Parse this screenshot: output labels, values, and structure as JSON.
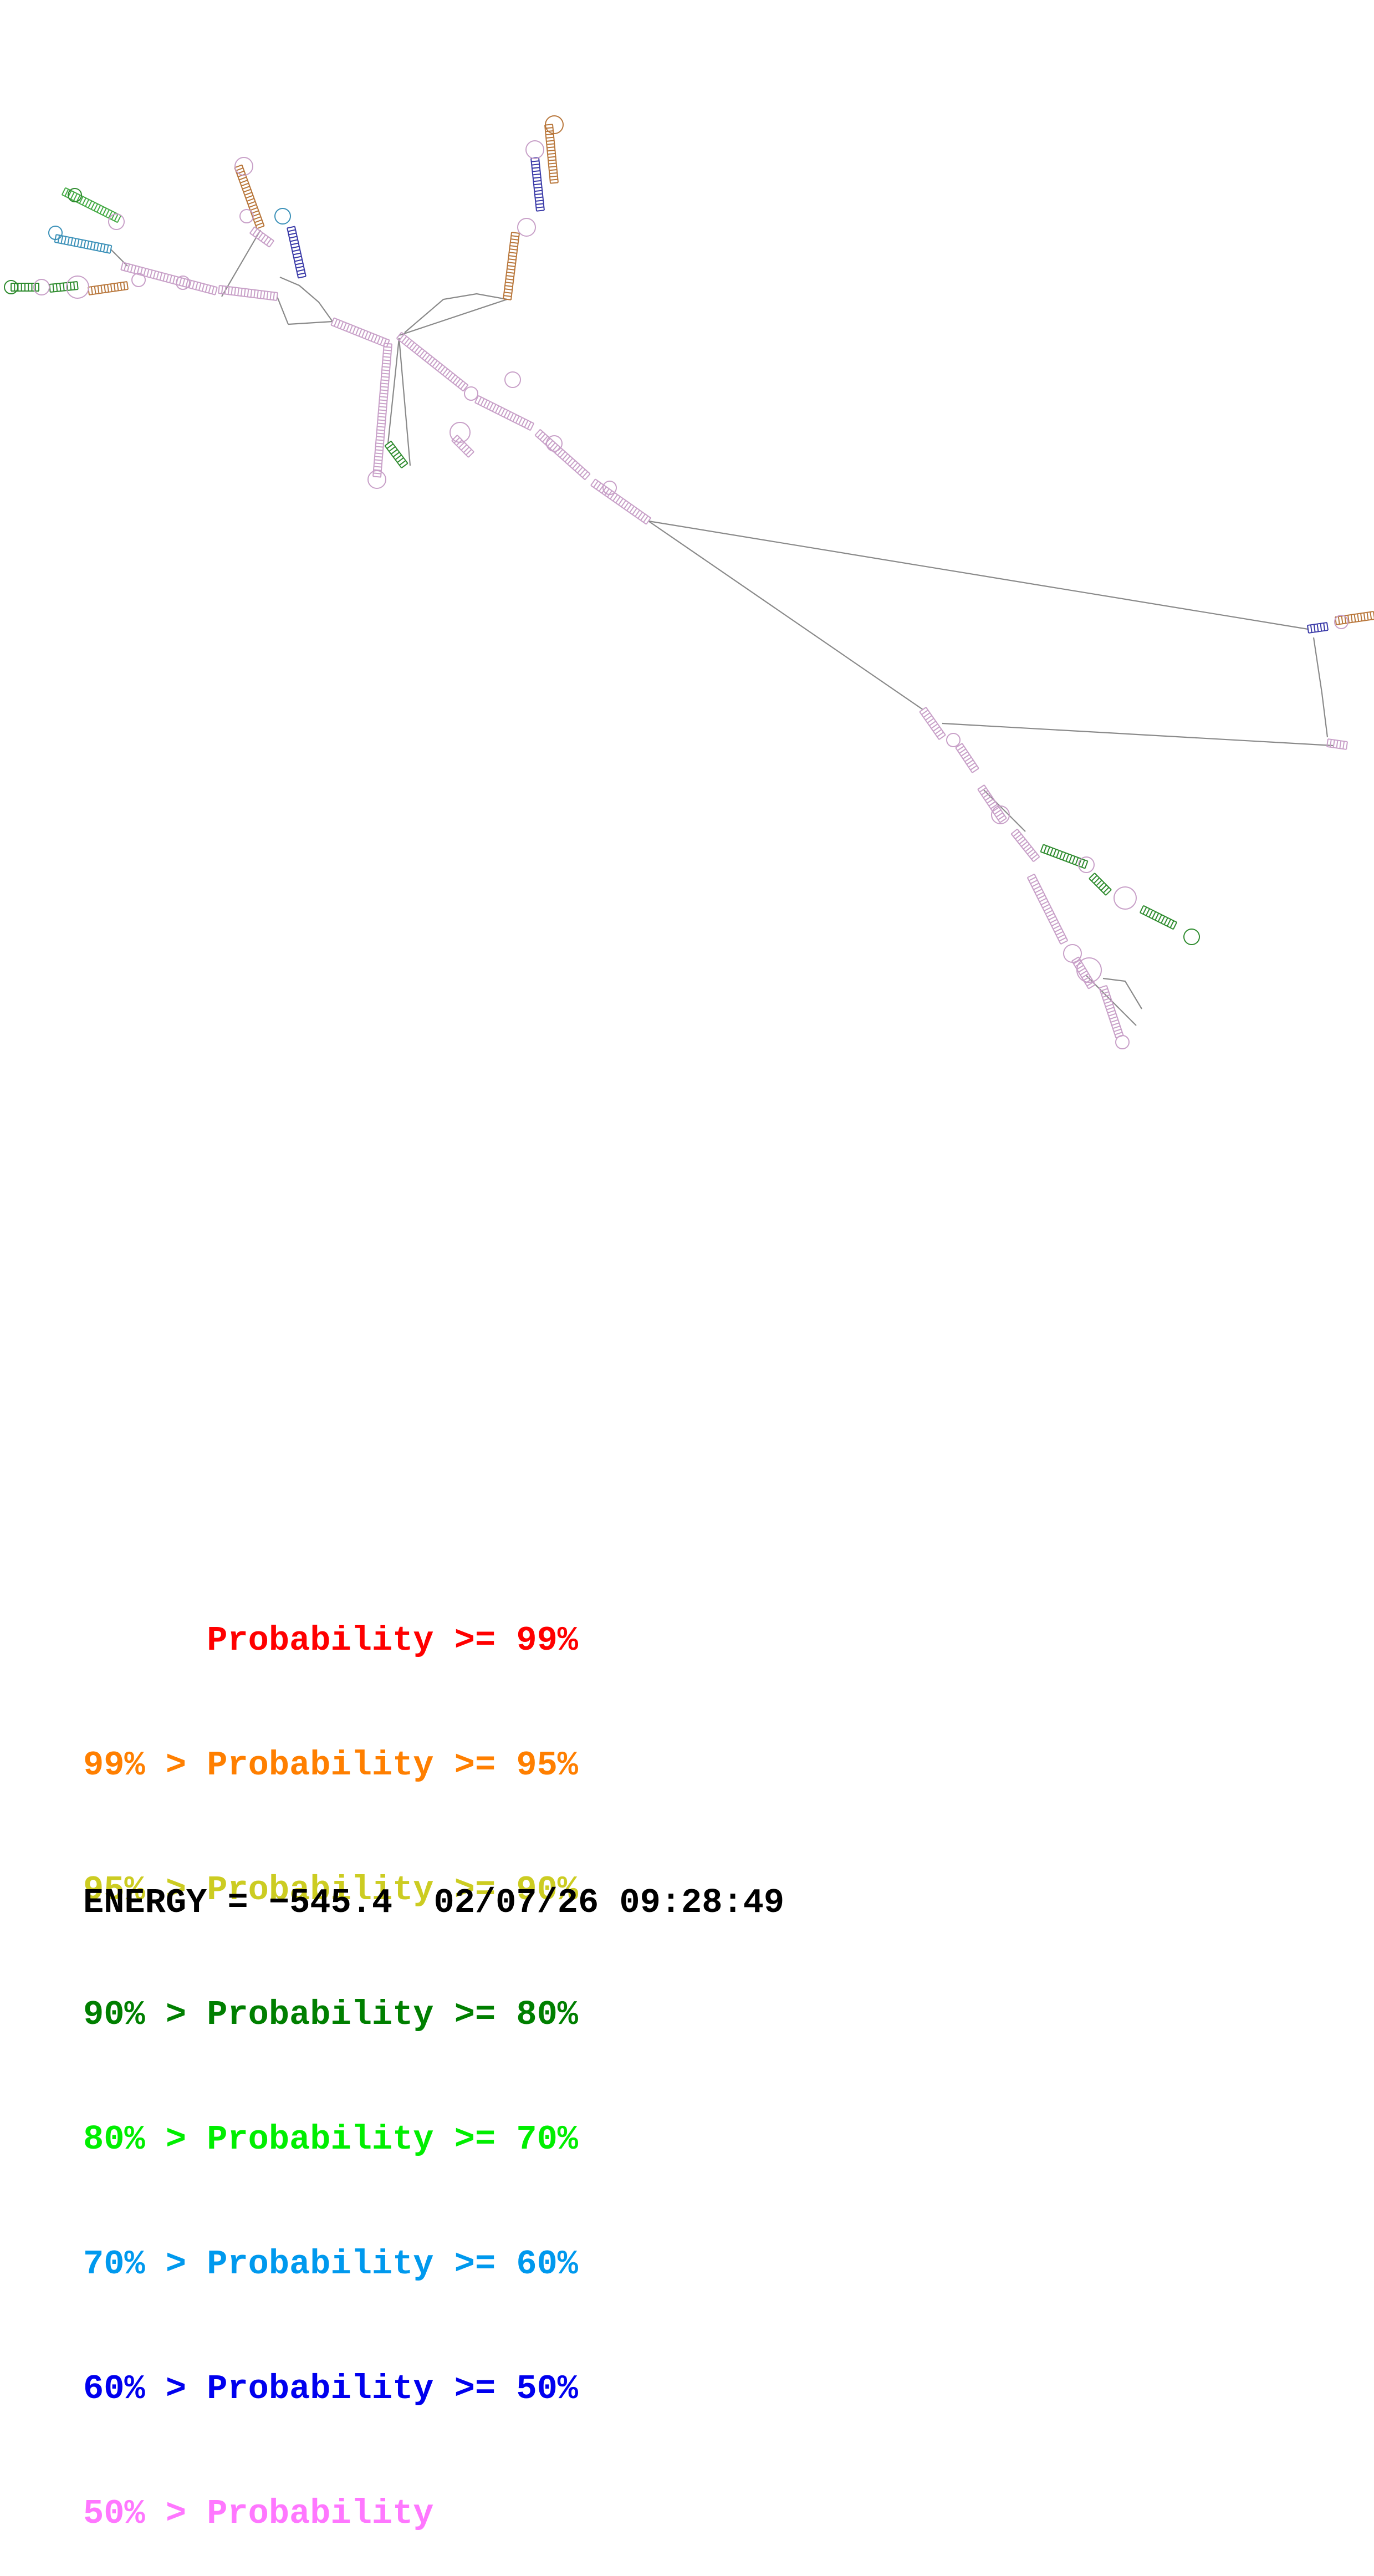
{
  "legend": [
    {
      "prefix": "",
      "label": "Probability",
      "suffix": ">= 99%",
      "color": "#ff0000"
    },
    {
      "prefix": "99% >",
      "label": "Probability",
      "suffix": ">= 95%",
      "color": "#ff7f00"
    },
    {
      "prefix": "95% >",
      "label": "Probability",
      "suffix": ">= 90%",
      "color": "#cccc22"
    },
    {
      "prefix": "90% >",
      "label": "Probability",
      "suffix": ">= 80%",
      "color": "#007f00"
    },
    {
      "prefix": "80% >",
      "label": "Probability",
      "suffix": ">= 70%",
      "color": "#00ee00"
    },
    {
      "prefix": "70% >",
      "label": "Probability",
      "suffix": ">= 60%",
      "color": "#0099ee"
    },
    {
      "prefix": "60% >",
      "label": "Probability",
      "suffix": ">= 50%",
      "color": "#0000ee"
    },
    {
      "prefix": "50% >",
      "label": "Probability",
      "suffix": "",
      "color": "#ff77ff"
    }
  ],
  "energy": {
    "label": "ENERGY =",
    "value": "−545.4",
    "date": "02/07/26",
    "time": "09:28:49"
  },
  "structure_colors": {
    "backbone": "#808080",
    "pair_default": "#c8a0c8",
    "pair_green": "#2e8b2e",
    "pair_blue": "#3a3aa8",
    "pair_orange": "#b8763a",
    "pair_cyan": "#3a90b8",
    "pair_lightgreen": "#44aa44"
  }
}
